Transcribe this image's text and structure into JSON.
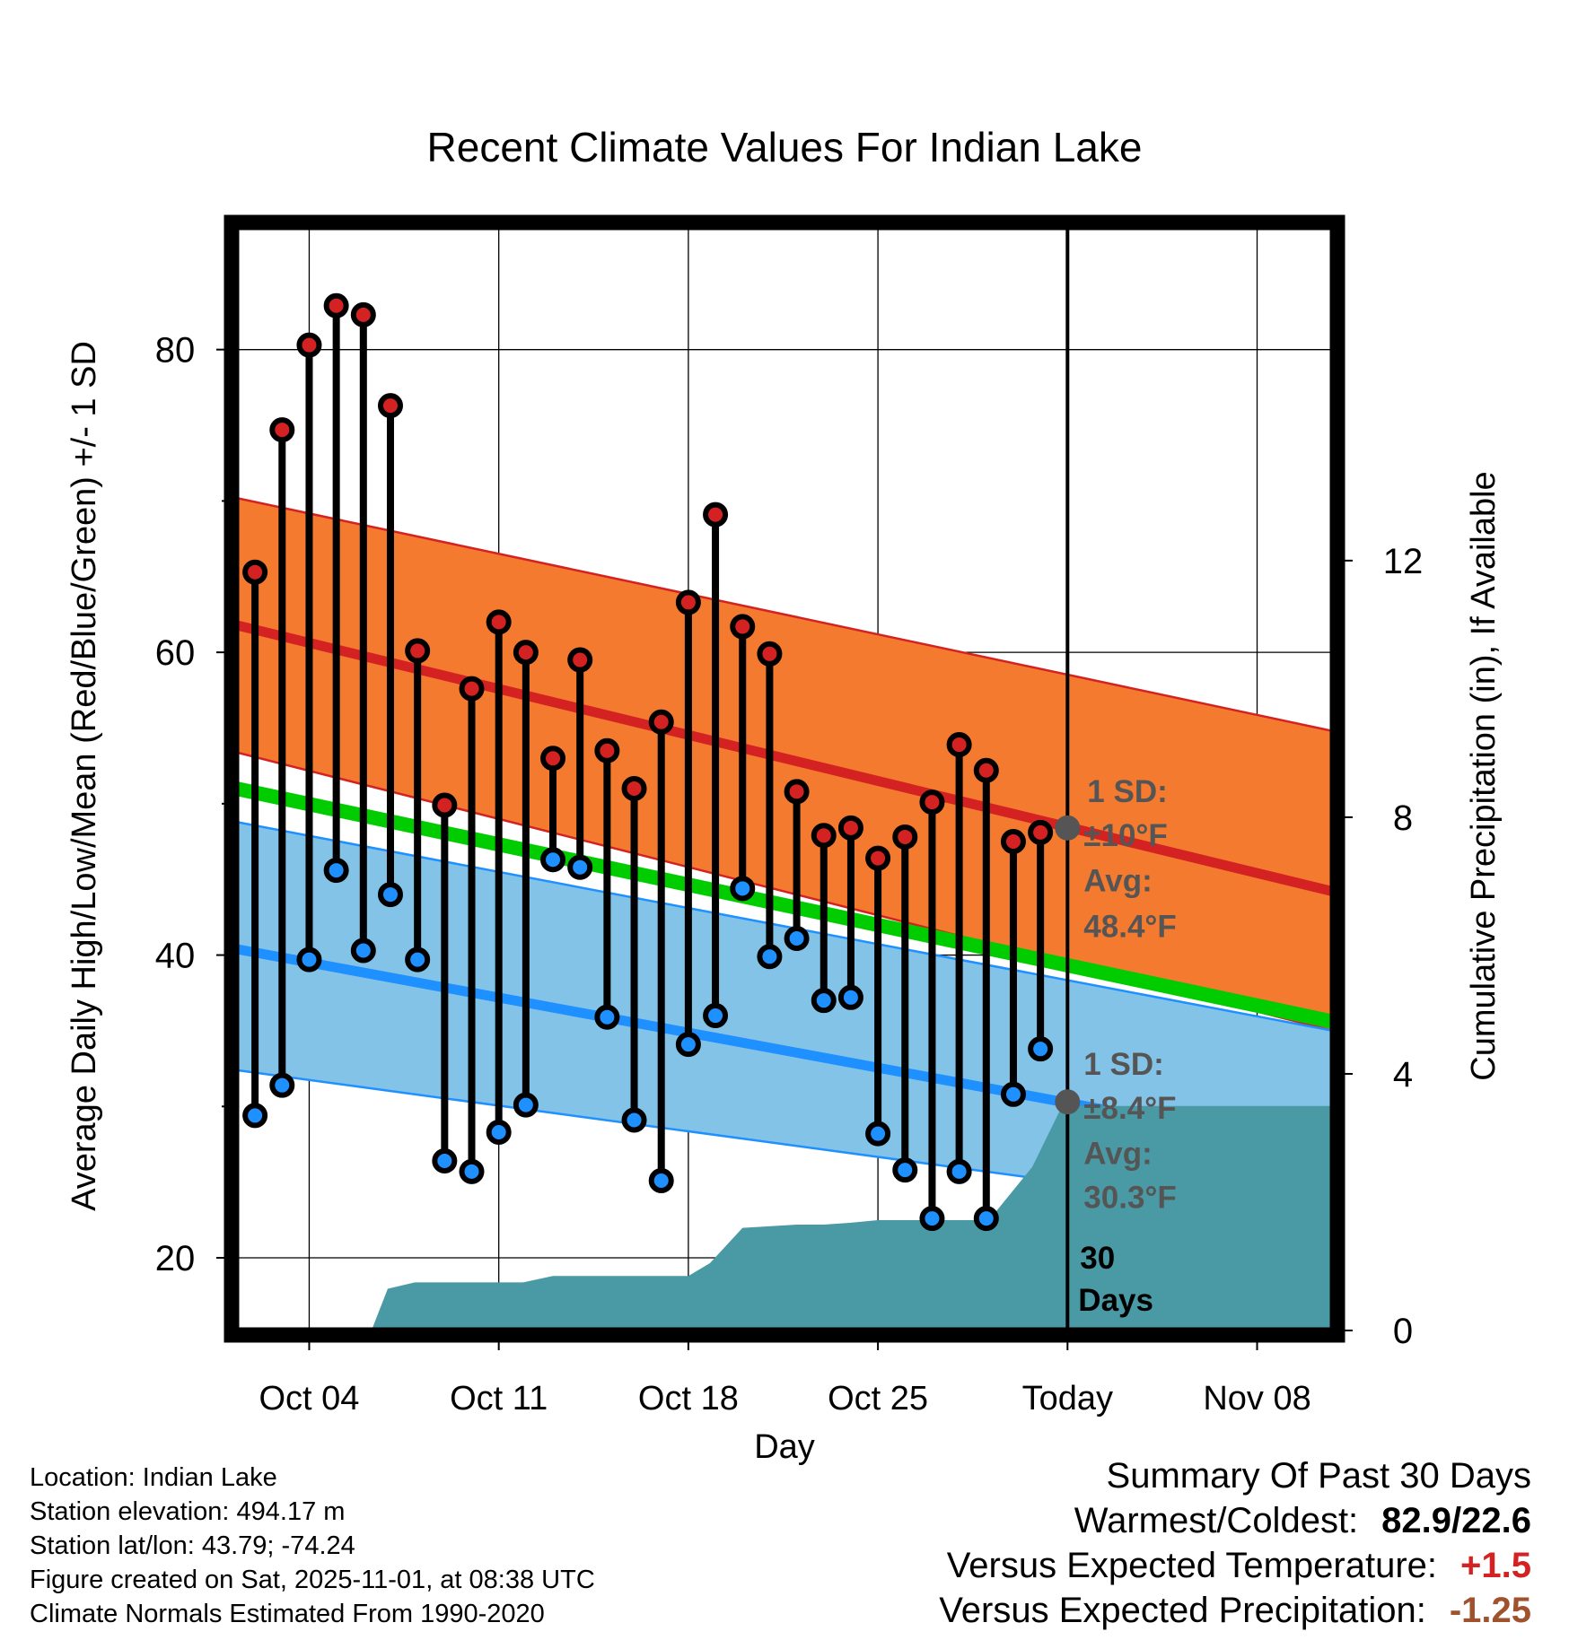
{
  "chart_data": {
    "type": "line",
    "title": "Recent Climate Values For Indian Lake",
    "xlabel": "Day",
    "ylabel_left": "Average Daily High/Low/Mean (Red/Blue/Green) +/- 1 SD",
    "ylabel_right": "Cumulative Precipitation (in), If Available",
    "x_tick_labels": [
      "Oct 04",
      "Oct 11",
      "Oct 18",
      "Oct 25",
      "Today",
      "Nov 08"
    ],
    "x_tick_days": [
      4,
      11,
      18,
      25,
      32,
      39
    ],
    "x_range_days": [
      1.3,
      41.8
    ],
    "y_left_ticks": [
      "20",
      "40",
      "60",
      "80"
    ],
    "y_left_tick_values": [
      20,
      40,
      60,
      80
    ],
    "y_left_range": [
      15.2,
      88.1
    ],
    "y_right_ticks": [
      "0",
      "4",
      "8",
      "12"
    ],
    "y_right_tick_values": [
      0,
      4,
      8,
      12
    ],
    "y_right_range": [
      0,
      17.2
    ],
    "today_day": 32,
    "normals": {
      "days": [
        1.3,
        41.8
      ],
      "high_mean": [
        61.8,
        44.2
      ],
      "high_upper": [
        70.2,
        54.8
      ],
      "high_lower": [
        53.4,
        35.0
      ],
      "mean": [
        51.0,
        35.6
      ],
      "low_mean": [
        40.4,
        27.0
      ],
      "low_upper": [
        48.8,
        35.0
      ],
      "low_lower": [
        32.4,
        22.6
      ]
    },
    "daily_obs": {
      "days": [
        2,
        3,
        4,
        5,
        6,
        7,
        8,
        9,
        10,
        11,
        12,
        13,
        14,
        15,
        16,
        17,
        18,
        19,
        20,
        21,
        22,
        23,
        24,
        25,
        26,
        27,
        28,
        29,
        30,
        31
      ],
      "highs": [
        65.3,
        74.7,
        80.3,
        82.9,
        82.3,
        76.3,
        60.1,
        49.9,
        57.6,
        62.0,
        60.0,
        53.0,
        59.5,
        53.5,
        51.0,
        55.4,
        63.3,
        69.1,
        61.7,
        59.9,
        50.8,
        47.9,
        48.4,
        46.4,
        47.8,
        50.1,
        53.9,
        52.2,
        47.5,
        48.1
      ],
      "lows": [
        29.4,
        31.4,
        39.7,
        45.6,
        40.3,
        44.0,
        39.7,
        26.4,
        25.7,
        28.3,
        30.1,
        46.3,
        45.8,
        35.9,
        29.1,
        25.1,
        34.1,
        36.0,
        44.4,
        39.9,
        41.1,
        37.0,
        37.2,
        28.2,
        25.8,
        22.6,
        25.7,
        22.6,
        30.8,
        33.8
      ]
    },
    "precip": {
      "days": [
        1.3,
        6.3,
        6.9,
        7.9,
        11.0,
        11.9,
        13.0,
        18.0,
        18.8,
        20.0,
        22.0,
        23.0,
        24.0,
        25.0,
        26.0,
        29.1,
        30.7,
        31.8,
        41.8
      ],
      "cumulative": [
        0,
        0,
        0.65,
        0.75,
        0.75,
        0.75,
        0.85,
        0.85,
        1.05,
        1.6,
        1.65,
        1.65,
        1.68,
        1.72,
        1.72,
        1.72,
        2.55,
        3.5,
        3.5
      ]
    },
    "annotations": {
      "high_sd": "1 SD:",
      "high_sd_value": "±10°F",
      "high_avg_label": "Avg:",
      "high_avg_value": "48.4°F",
      "high_avg_number": 48.4,
      "low_sd": "1 SD:",
      "low_sd_value": "±8.4°F",
      "low_avg_label": "Avg:",
      "low_avg_value": "30.3°F",
      "low_avg_number": 30.3,
      "window_number": "30",
      "window_unit": "Days"
    },
    "colors": {
      "high_band": "#f37a2e",
      "high_line": "#d42222",
      "low_band": "#84c3e8",
      "low_line": "#1e90ff",
      "mean_line": "#00cc00",
      "precip": "#4a9aa5",
      "annotation": "#555555"
    }
  },
  "footer": {
    "location": "Location: Indian Lake",
    "elevation": "Station elevation: 494.17 m",
    "latlon": "Station lat/lon: 43.79; -74.24",
    "created": "Figure created on Sat, 2025-11-01, at 08:38 UTC",
    "normals": "Climate Normals Estimated From 1990-2020"
  },
  "summary": {
    "title": "Summary Of Past 30 Days",
    "warm_cold_label": "Warmest/Coldest:",
    "warm_cold_value": "82.9/22.6",
    "temp_label": "Versus Expected Temperature:",
    "temp_value": "+1.5",
    "temp_color": "#d42222",
    "precip_label": "Versus Expected Precipitation:",
    "precip_value": "-1.25",
    "precip_color": "#a0522d"
  }
}
